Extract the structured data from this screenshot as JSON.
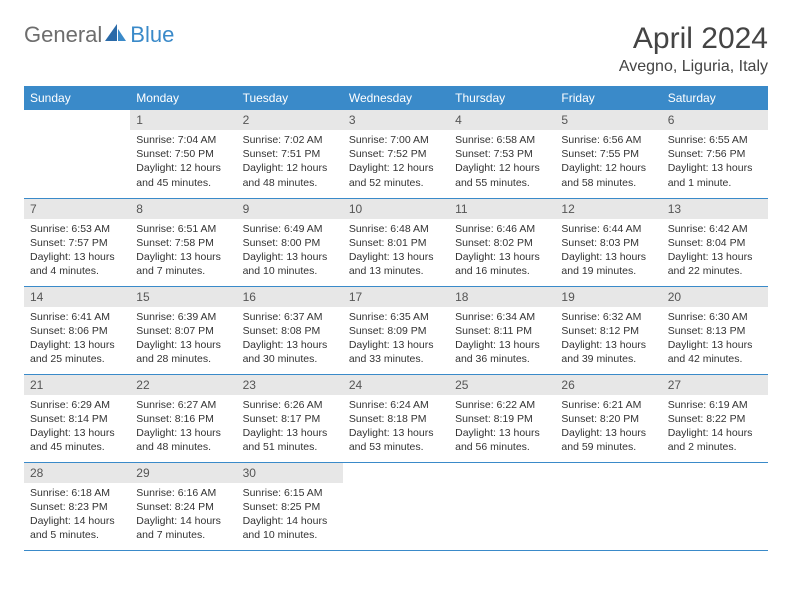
{
  "logo": {
    "general": "General",
    "blue": "Blue"
  },
  "title": "April 2024",
  "location": "Avegno, Liguria, Italy",
  "colors": {
    "header_bg": "#3a8ac9",
    "header_text": "#ffffff",
    "daynum_bg": "#e7e7e7",
    "daynum_text": "#555555",
    "body_text": "#333333",
    "rule": "#3a8ac9",
    "logo_gray": "#6d6d6d",
    "logo_blue": "#3a8ac9",
    "page_bg": "#ffffff"
  },
  "weekdays": [
    "Sunday",
    "Monday",
    "Tuesday",
    "Wednesday",
    "Thursday",
    "Friday",
    "Saturday"
  ],
  "weeks": [
    [
      {
        "empty": true
      },
      {
        "n": "1",
        "sunrise": "Sunrise: 7:04 AM",
        "sunset": "Sunset: 7:50 PM",
        "day1": "Daylight: 12 hours",
        "day2": "and 45 minutes."
      },
      {
        "n": "2",
        "sunrise": "Sunrise: 7:02 AM",
        "sunset": "Sunset: 7:51 PM",
        "day1": "Daylight: 12 hours",
        "day2": "and 48 minutes."
      },
      {
        "n": "3",
        "sunrise": "Sunrise: 7:00 AM",
        "sunset": "Sunset: 7:52 PM",
        "day1": "Daylight: 12 hours",
        "day2": "and 52 minutes."
      },
      {
        "n": "4",
        "sunrise": "Sunrise: 6:58 AM",
        "sunset": "Sunset: 7:53 PM",
        "day1": "Daylight: 12 hours",
        "day2": "and 55 minutes."
      },
      {
        "n": "5",
        "sunrise": "Sunrise: 6:56 AM",
        "sunset": "Sunset: 7:55 PM",
        "day1": "Daylight: 12 hours",
        "day2": "and 58 minutes."
      },
      {
        "n": "6",
        "sunrise": "Sunrise: 6:55 AM",
        "sunset": "Sunset: 7:56 PM",
        "day1": "Daylight: 13 hours",
        "day2": "and 1 minute."
      }
    ],
    [
      {
        "n": "7",
        "sunrise": "Sunrise: 6:53 AM",
        "sunset": "Sunset: 7:57 PM",
        "day1": "Daylight: 13 hours",
        "day2": "and 4 minutes."
      },
      {
        "n": "8",
        "sunrise": "Sunrise: 6:51 AM",
        "sunset": "Sunset: 7:58 PM",
        "day1": "Daylight: 13 hours",
        "day2": "and 7 minutes."
      },
      {
        "n": "9",
        "sunrise": "Sunrise: 6:49 AM",
        "sunset": "Sunset: 8:00 PM",
        "day1": "Daylight: 13 hours",
        "day2": "and 10 minutes."
      },
      {
        "n": "10",
        "sunrise": "Sunrise: 6:48 AM",
        "sunset": "Sunset: 8:01 PM",
        "day1": "Daylight: 13 hours",
        "day2": "and 13 minutes."
      },
      {
        "n": "11",
        "sunrise": "Sunrise: 6:46 AM",
        "sunset": "Sunset: 8:02 PM",
        "day1": "Daylight: 13 hours",
        "day2": "and 16 minutes."
      },
      {
        "n": "12",
        "sunrise": "Sunrise: 6:44 AM",
        "sunset": "Sunset: 8:03 PM",
        "day1": "Daylight: 13 hours",
        "day2": "and 19 minutes."
      },
      {
        "n": "13",
        "sunrise": "Sunrise: 6:42 AM",
        "sunset": "Sunset: 8:04 PM",
        "day1": "Daylight: 13 hours",
        "day2": "and 22 minutes."
      }
    ],
    [
      {
        "n": "14",
        "sunrise": "Sunrise: 6:41 AM",
        "sunset": "Sunset: 8:06 PM",
        "day1": "Daylight: 13 hours",
        "day2": "and 25 minutes."
      },
      {
        "n": "15",
        "sunrise": "Sunrise: 6:39 AM",
        "sunset": "Sunset: 8:07 PM",
        "day1": "Daylight: 13 hours",
        "day2": "and 28 minutes."
      },
      {
        "n": "16",
        "sunrise": "Sunrise: 6:37 AM",
        "sunset": "Sunset: 8:08 PM",
        "day1": "Daylight: 13 hours",
        "day2": "and 30 minutes."
      },
      {
        "n": "17",
        "sunrise": "Sunrise: 6:35 AM",
        "sunset": "Sunset: 8:09 PM",
        "day1": "Daylight: 13 hours",
        "day2": "and 33 minutes."
      },
      {
        "n": "18",
        "sunrise": "Sunrise: 6:34 AM",
        "sunset": "Sunset: 8:11 PM",
        "day1": "Daylight: 13 hours",
        "day2": "and 36 minutes."
      },
      {
        "n": "19",
        "sunrise": "Sunrise: 6:32 AM",
        "sunset": "Sunset: 8:12 PM",
        "day1": "Daylight: 13 hours",
        "day2": "and 39 minutes."
      },
      {
        "n": "20",
        "sunrise": "Sunrise: 6:30 AM",
        "sunset": "Sunset: 8:13 PM",
        "day1": "Daylight: 13 hours",
        "day2": "and 42 minutes."
      }
    ],
    [
      {
        "n": "21",
        "sunrise": "Sunrise: 6:29 AM",
        "sunset": "Sunset: 8:14 PM",
        "day1": "Daylight: 13 hours",
        "day2": "and 45 minutes."
      },
      {
        "n": "22",
        "sunrise": "Sunrise: 6:27 AM",
        "sunset": "Sunset: 8:16 PM",
        "day1": "Daylight: 13 hours",
        "day2": "and 48 minutes."
      },
      {
        "n": "23",
        "sunrise": "Sunrise: 6:26 AM",
        "sunset": "Sunset: 8:17 PM",
        "day1": "Daylight: 13 hours",
        "day2": "and 51 minutes."
      },
      {
        "n": "24",
        "sunrise": "Sunrise: 6:24 AM",
        "sunset": "Sunset: 8:18 PM",
        "day1": "Daylight: 13 hours",
        "day2": "and 53 minutes."
      },
      {
        "n": "25",
        "sunrise": "Sunrise: 6:22 AM",
        "sunset": "Sunset: 8:19 PM",
        "day1": "Daylight: 13 hours",
        "day2": "and 56 minutes."
      },
      {
        "n": "26",
        "sunrise": "Sunrise: 6:21 AM",
        "sunset": "Sunset: 8:20 PM",
        "day1": "Daylight: 13 hours",
        "day2": "and 59 minutes."
      },
      {
        "n": "27",
        "sunrise": "Sunrise: 6:19 AM",
        "sunset": "Sunset: 8:22 PM",
        "day1": "Daylight: 14 hours",
        "day2": "and 2 minutes."
      }
    ],
    [
      {
        "n": "28",
        "sunrise": "Sunrise: 6:18 AM",
        "sunset": "Sunset: 8:23 PM",
        "day1": "Daylight: 14 hours",
        "day2": "and 5 minutes."
      },
      {
        "n": "29",
        "sunrise": "Sunrise: 6:16 AM",
        "sunset": "Sunset: 8:24 PM",
        "day1": "Daylight: 14 hours",
        "day2": "and 7 minutes."
      },
      {
        "n": "30",
        "sunrise": "Sunrise: 6:15 AM",
        "sunset": "Sunset: 8:25 PM",
        "day1": "Daylight: 14 hours",
        "day2": "and 10 minutes."
      },
      {
        "empty": true
      },
      {
        "empty": true
      },
      {
        "empty": true
      },
      {
        "empty": true
      }
    ]
  ]
}
